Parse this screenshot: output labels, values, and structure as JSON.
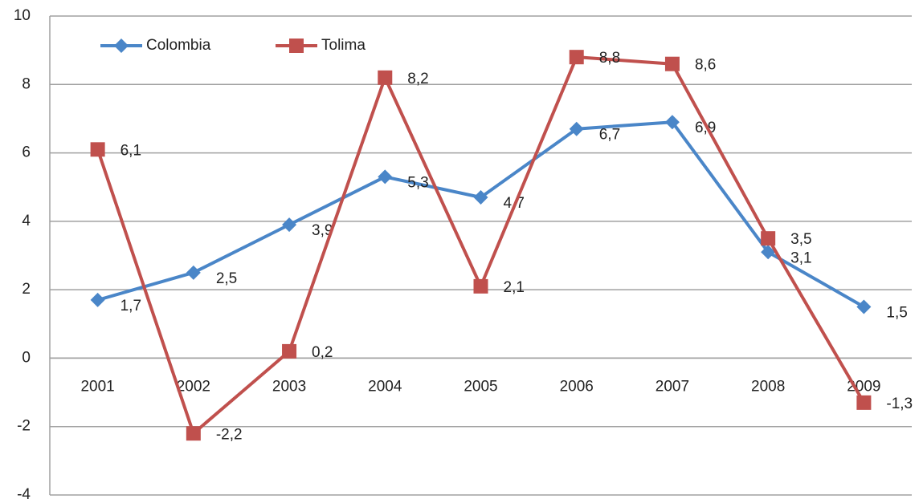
{
  "chart_data": {
    "type": "line",
    "categories": [
      "2001",
      "2002",
      "2003",
      "2004",
      "2005",
      "2006",
      "2007",
      "2008",
      "2009"
    ],
    "series": [
      {
        "name": "Colombia",
        "color": "#4a86c8",
        "marker": "diamond",
        "values": [
          1.7,
          2.5,
          3.9,
          5.3,
          4.7,
          6.7,
          6.9,
          3.1,
          1.5
        ],
        "value_labels": [
          "1,7",
          "2,5",
          "3,9",
          "5,3",
          "4,7",
          "6,7",
          "6,9",
          "3,1",
          "1,5"
        ]
      },
      {
        "name": "Tolima",
        "color": "#c0504d",
        "marker": "square",
        "values": [
          6.1,
          -2.2,
          0.2,
          8.2,
          2.1,
          8.8,
          8.6,
          3.5,
          -1.3
        ],
        "value_labels": [
          "6,1",
          "-2,2",
          "0,2",
          "8,2",
          "2,1",
          "8,8",
          "8,6",
          "3,5",
          "-1,3"
        ]
      }
    ],
    "ylim": [
      -4,
      10
    ],
    "yticks": [
      -4,
      -2,
      0,
      2,
      4,
      6,
      8,
      10
    ],
    "grid": true,
    "legend": "top-left"
  }
}
